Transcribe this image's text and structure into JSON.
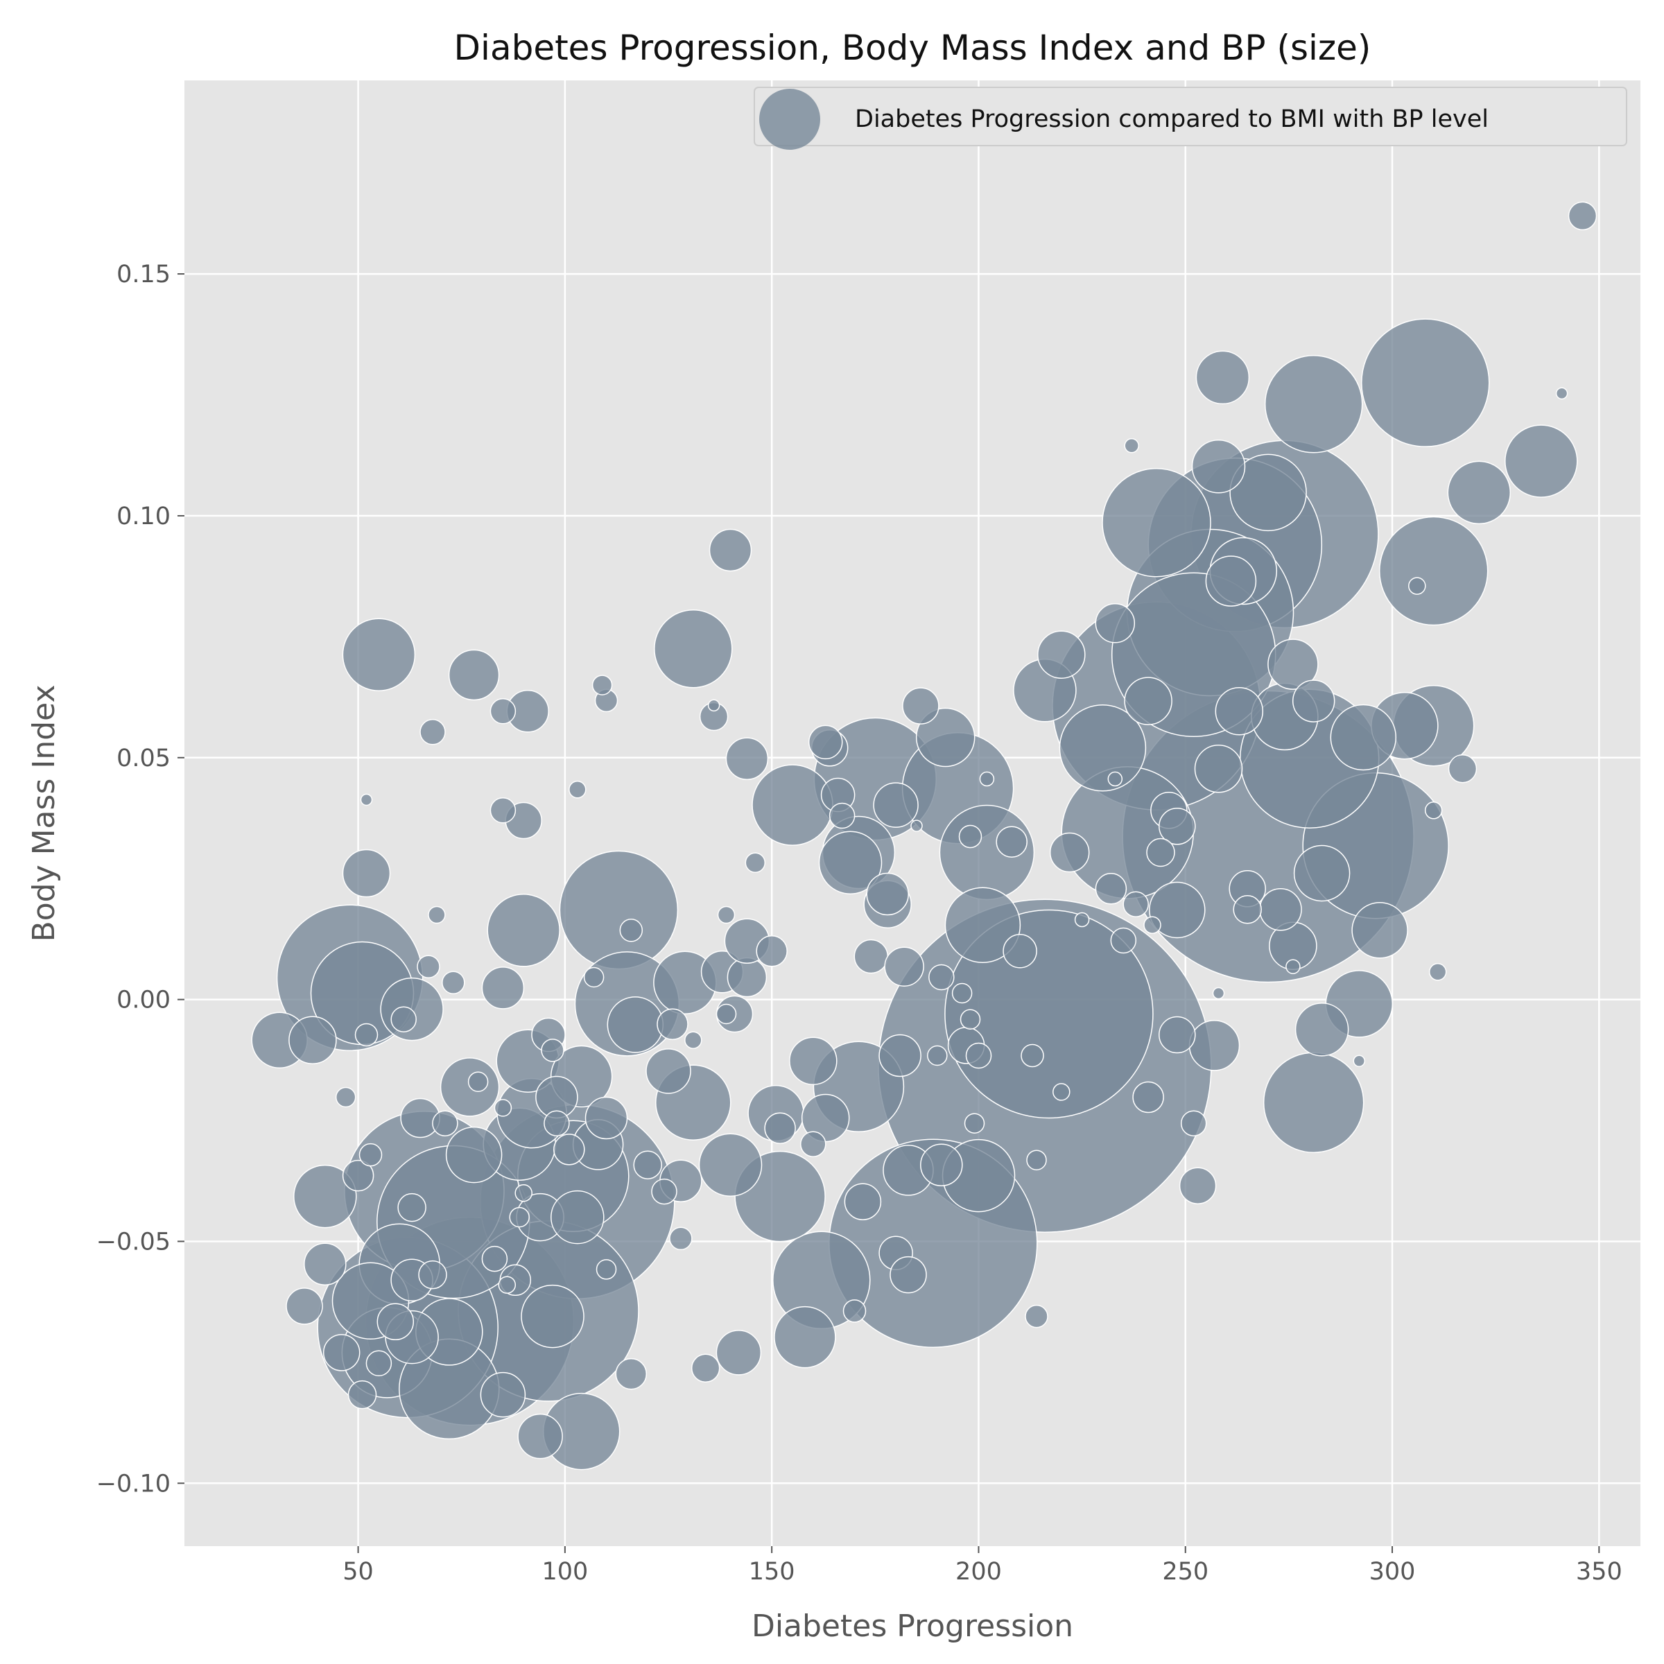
{
  "chart_data": {
    "type": "scatter",
    "title": "Diabetes Progression, Body Mass Index and BP (size)",
    "xlabel": "Diabetes Progression",
    "ylabel": "Body Mass Index",
    "xlim": [
      8,
      360
    ],
    "ylim": [
      -0.113,
      0.19
    ],
    "xticks": [
      50,
      100,
      150,
      200,
      250,
      300,
      350
    ],
    "xtick_labels": [
      "50",
      "100",
      "150",
      "200",
      "250",
      "300",
      "350"
    ],
    "yticks": [
      -0.1,
      -0.05,
      0.0,
      0.05,
      0.1,
      0.15
    ],
    "ytick_labels": [
      "−0.10",
      "−0.05",
      "0.00",
      "0.05",
      "0.10",
      "0.15"
    ],
    "grid": true,
    "legend": {
      "position": "top-right",
      "entries": [
        "Diabetes Progression compared to BMI with BP level"
      ]
    },
    "colors": {
      "background": "#e5e5e5",
      "grid": "#ffffff",
      "marker": "#778899",
      "marker_edge": "#ffffff"
    },
    "series": [
      {
        "name": "Diabetes Progression compared to BMI with BP level",
        "points": [
          [
            216,
            -0.0137,
            240
          ],
          [
            270,
            0.0337,
            210
          ],
          [
            217,
            -0.003,
            150
          ],
          [
            243,
            0.0607,
            150
          ],
          [
            189,
            -0.0504,
            150
          ],
          [
            77,
            -0.0665,
            150
          ],
          [
            103,
            -0.0418,
            140
          ],
          [
            274,
            0.0962,
            135
          ],
          [
            96,
            -0.0644,
            130
          ],
          [
            262,
            0.094,
            125
          ],
          [
            62,
            -0.0678,
            130
          ],
          [
            256,
            0.08,
            120
          ],
          [
            252,
            0.0713,
            118
          ],
          [
            66,
            -0.0396,
            115
          ],
          [
            73,
            -0.046,
            110
          ],
          [
            48,
            0.0045,
            105
          ],
          [
            296,
            0.0318,
            105
          ],
          [
            280,
            0.0498,
            100
          ],
          [
            236,
            0.0345,
            95
          ],
          [
            308,
            0.1275,
            92
          ],
          [
            175,
            0.0456,
            88
          ],
          [
            113,
            0.0185,
            85
          ],
          [
            195,
            0.0437,
            80
          ],
          [
            102,
            -0.0365,
            80
          ],
          [
            243,
            0.0986,
            78
          ],
          [
            51,
            0.0013,
            74
          ],
          [
            115,
            -0.0009,
            75
          ],
          [
            310,
            0.0886,
            78
          ],
          [
            162,
            -0.058,
            70
          ],
          [
            281,
            0.1231,
            70
          ],
          [
            281,
            -0.0213,
            72
          ],
          [
            171,
            -0.018,
            65
          ],
          [
            230,
            0.052,
            62
          ],
          [
            202,
            0.0304,
            68
          ],
          [
            57,
            -0.073,
            65
          ],
          [
            72,
            -0.0805,
            72
          ],
          [
            152,
            -0.0407,
            65
          ],
          [
            60,
            -0.0547,
            58
          ],
          [
            53,
            -0.0623,
            55
          ],
          [
            310,
            0.0566,
            58
          ],
          [
            336,
            0.1113,
            52
          ],
          [
            131,
            0.0725,
            56
          ],
          [
            131,
            -0.0213,
            54
          ],
          [
            155,
            0.0402,
            58
          ],
          [
            104,
            -0.0893,
            55
          ],
          [
            89,
            -0.0299,
            52
          ],
          [
            303,
            0.0566,
            48
          ],
          [
            270,
            0.1048,
            55
          ],
          [
            201,
            0.0154,
            54
          ],
          [
            264,
            0.0886,
            48
          ],
          [
            90,
            0.0143,
            52
          ],
          [
            55,
            0.0713,
            52
          ],
          [
            200,
            -0.0364,
            52
          ],
          [
            92,
            -0.0235,
            50
          ],
          [
            171,
            0.0304,
            52
          ],
          [
            169,
            0.0283,
            45
          ],
          [
            140,
            -0.0342,
            45
          ],
          [
            129,
            0.0035,
            45
          ],
          [
            274,
            0.0585,
            48
          ],
          [
            158,
            -0.0698,
            44
          ],
          [
            91,
            -0.0127,
            45
          ],
          [
            293,
            0.0542,
            47
          ],
          [
            192,
            0.0542,
            42
          ],
          [
            292,
            -0.0009,
            48
          ],
          [
            321,
            0.1048,
            45
          ],
          [
            248,
            0.0185,
            40
          ],
          [
            42,
            -0.0407,
            45
          ],
          [
            97,
            -0.0655,
            45
          ],
          [
            72,
            -0.0687,
            48
          ],
          [
            117,
            -0.0052,
            40
          ],
          [
            104,
            -0.0159,
            44
          ],
          [
            63,
            -0.002,
            45
          ],
          [
            77,
            -0.0181,
            42
          ],
          [
            78,
            -0.0321,
            40
          ],
          [
            108,
            -0.03,
            36
          ],
          [
            151,
            -0.0235,
            40
          ],
          [
            144,
            0.0498,
            30
          ],
          [
            297,
            0.0143,
            40
          ],
          [
            31,
            -0.0084,
            40
          ],
          [
            216,
            0.0639,
            45
          ],
          [
            259,
            0.1286,
            38
          ],
          [
            258,
            0.1102,
            38
          ],
          [
            261,
            0.0865,
            36
          ],
          [
            220,
            0.0713,
            34
          ],
          [
            276,
            0.0693,
            36
          ],
          [
            283,
            0.0261,
            40
          ],
          [
            283,
            -0.0062,
            38
          ],
          [
            257,
            -0.0095,
            36
          ],
          [
            276,
            0.0111,
            34
          ],
          [
            258,
            0.0477,
            34
          ],
          [
            263,
            0.0596,
            34
          ],
          [
            281,
            0.0617,
            30
          ],
          [
            78,
            0.0671,
            36
          ],
          [
            91,
            0.0596,
            30
          ],
          [
            140,
            0.0929,
            30
          ],
          [
            52,
            0.0261,
            34
          ],
          [
            39,
            -0.0084,
            34
          ],
          [
            37,
            -0.0634,
            26
          ],
          [
            42,
            -0.0547,
            30
          ],
          [
            63,
            -0.058,
            30
          ],
          [
            63,
            -0.0698,
            38
          ],
          [
            85,
            -0.0817,
            32
          ],
          [
            94,
            -0.0903,
            32
          ],
          [
            142,
            -0.073,
            32
          ],
          [
            183,
            -0.0353,
            36
          ],
          [
            181,
            -0.0116,
            30
          ],
          [
            178,
            0.0197,
            34
          ],
          [
            178,
            0.0218,
            30
          ],
          [
            180,
            0.0402,
            32
          ],
          [
            191,
            -0.0342,
            30
          ],
          [
            210,
            0.01,
            24
          ],
          [
            222,
            0.0304,
            28
          ],
          [
            233,
            0.0778,
            28
          ],
          [
            241,
            0.0617,
            34
          ],
          [
            246,
            0.0391,
            26
          ],
          [
            248,
            0.0358,
            26
          ],
          [
            273,
            0.0186,
            30
          ],
          [
            125,
            -0.0148,
            32
          ],
          [
            110,
            -0.0245,
            30
          ],
          [
            98,
            -0.0202,
            30
          ],
          [
            94,
            -0.045,
            34
          ],
          [
            103,
            -0.045,
            38
          ],
          [
            128,
            -0.0375,
            30
          ],
          [
            138,
            0.0057,
            30
          ],
          [
            144,
            0.0046,
            28
          ],
          [
            144,
            0.0121,
            32
          ],
          [
            141,
            -0.003,
            26
          ],
          [
            160,
            -0.0127,
            34
          ],
          [
            163,
            -0.0245,
            34
          ],
          [
            172,
            -0.0418,
            26
          ],
          [
            180,
            -0.0524,
            24
          ],
          [
            183,
            -0.0569,
            26
          ],
          [
            186,
            0.0607,
            26
          ],
          [
            197,
            -0.0095,
            26
          ],
          [
            208,
            0.0326,
            22
          ],
          [
            166,
            0.0423,
            24
          ],
          [
            164,
            0.052,
            26
          ],
          [
            163,
            0.0532,
            24
          ],
          [
            174,
            0.0089,
            24
          ],
          [
            182,
            0.0068,
            28
          ],
          [
            85,
            0.0024,
            30
          ],
          [
            65,
            -0.0245,
            28
          ],
          [
            50,
            -0.0364,
            22
          ],
          [
            46,
            -0.073,
            26
          ],
          [
            51,
            -0.0817,
            20
          ],
          [
            116,
            -0.0774,
            22
          ],
          [
            134,
            -0.0762,
            20
          ],
          [
            136,
            0.0585,
            20
          ],
          [
            241,
            -0.0202,
            22
          ],
          [
            248,
            -0.0073,
            26
          ],
          [
            253,
            -0.0385,
            26
          ],
          [
            244,
            0.0304,
            20
          ],
          [
            235,
            0.0122,
            18
          ],
          [
            232,
            0.0229,
            22
          ],
          [
            238,
            0.0197,
            18
          ],
          [
            265,
            0.0229,
            26
          ],
          [
            265,
            0.0186,
            20
          ],
          [
            252,
            -0.0256,
            18
          ],
          [
            317,
            0.0477,
            20
          ],
          [
            346,
            0.162,
            20
          ],
          [
            213,
            -0.0116,
            16
          ],
          [
            214,
            -0.0332,
            14
          ],
          [
            214,
            -0.0655,
            16
          ],
          [
            199,
            -0.0256,
            14
          ],
          [
            198,
            -0.0041,
            14
          ],
          [
            196,
            0.0013,
            14
          ],
          [
            191,
            0.0046,
            18
          ],
          [
            200,
            -0.0116,
            18
          ],
          [
            198,
            0.0337,
            16
          ],
          [
            190,
            -0.0116,
            14
          ],
          [
            170,
            -0.0644,
            16
          ],
          [
            167,
            0.038,
            18
          ],
          [
            160,
            -0.0299,
            18
          ],
          [
            152,
            -0.0266,
            22
          ],
          [
            150,
            0.01,
            22
          ],
          [
            139,
            -0.003,
            14
          ],
          [
            128,
            -0.0494,
            16
          ],
          [
            126,
            -0.0051,
            22
          ],
          [
            124,
            -0.0397,
            18
          ],
          [
            120,
            -0.0342,
            20
          ],
          [
            110,
            -0.0558,
            14
          ],
          [
            110,
            0.0618,
            16
          ],
          [
            109,
            0.065,
            14
          ],
          [
            107,
            0.0046,
            14
          ],
          [
            103,
            0.0434,
            12
          ],
          [
            101,
            -0.031,
            22
          ],
          [
            98,
            -0.0256,
            18
          ],
          [
            96,
            -0.0073,
            24
          ],
          [
            97,
            -0.0105,
            16
          ],
          [
            90,
            0.037,
            26
          ],
          [
            89,
            -0.045,
            14
          ],
          [
            88,
            -0.058,
            22
          ],
          [
            85,
            0.0596,
            18
          ],
          [
            85,
            0.0391,
            18
          ],
          [
            83,
            -0.0536,
            18
          ],
          [
            79,
            -0.017,
            14
          ],
          [
            73,
            0.0035,
            16
          ],
          [
            71,
            -0.0256,
            18
          ],
          [
            68,
            0.0553,
            18
          ],
          [
            68,
            -0.0569,
            20
          ],
          [
            67,
            0.0068,
            16
          ],
          [
            63,
            -0.043,
            20
          ],
          [
            61,
            -0.0041,
            18
          ],
          [
            59,
            -0.0666,
            26
          ],
          [
            55,
            -0.0752,
            18
          ],
          [
            53,
            -0.0321,
            16
          ],
          [
            52,
            -0.0073,
            16
          ],
          [
            52,
            0.0413,
            8
          ],
          [
            47,
            -0.0202,
            14
          ],
          [
            69,
            0.0175,
            12
          ],
          [
            85,
            -0.0224,
            12
          ],
          [
            86,
            -0.059,
            12
          ],
          [
            90,
            -0.04,
            12
          ],
          [
            116,
            0.0143,
            16
          ],
          [
            131,
            -0.0084,
            12
          ],
          [
            136,
            0.0608,
            8
          ],
          [
            139,
            0.0175,
            12
          ],
          [
            146,
            0.0283,
            14
          ],
          [
            185,
            0.0359,
            8
          ],
          [
            202,
            0.0456,
            10
          ],
          [
            220,
            -0.0191,
            12
          ],
          [
            225,
            0.0165,
            10
          ],
          [
            233,
            0.0456,
            10
          ],
          [
            237,
            0.1145,
            10
          ],
          [
            242,
            0.0154,
            12
          ],
          [
            258,
            0.0013,
            8
          ],
          [
            276,
            0.0068,
            10
          ],
          [
            292,
            -0.0127,
            8
          ],
          [
            306,
            0.0855,
            12
          ],
          [
            310,
            0.0391,
            12
          ],
          [
            311,
            0.0057,
            12
          ],
          [
            341,
            0.1253,
            8
          ]
        ]
      }
    ]
  }
}
